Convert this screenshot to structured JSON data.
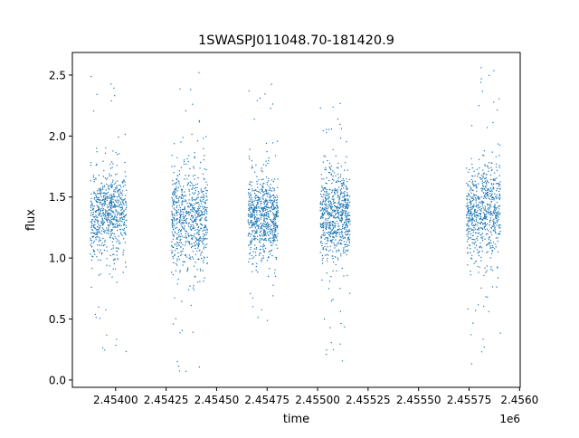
{
  "chart_data": {
    "type": "scatter",
    "title": "1SWASPJ011048.70-181420.9",
    "xlabel": "time",
    "ylabel": "flux",
    "x_offset_label": "1e6",
    "xlim": [
      2453786,
      2456003
    ],
    "ylim": [
      -0.06,
      2.685
    ],
    "xticks": [
      2454000,
      2454250,
      2454500,
      2454750,
      2455000,
      2455250,
      2455500,
      2455750,
      2456000
    ],
    "xtick_labels": [
      "2.45400",
      "2.45425",
      "2.45450",
      "2.45475",
      "2.45500",
      "2.45525",
      "2.45550",
      "2.45575",
      "2.4560"
    ],
    "yticks": [
      0.0,
      0.5,
      1.0,
      1.5,
      2.0,
      2.5
    ],
    "ytick_labels": [
      "0.0",
      "0.5",
      "1.0",
      "1.5",
      "2.0",
      "2.5"
    ],
    "grid": false,
    "marker_color": "#1f77b4",
    "seasons": [
      {
        "time_range": [
          2453875,
          2454055
        ],
        "flux_core": [
          1.0,
          1.7
        ],
        "flux_extremes": [
          0.08,
          2.56
        ],
        "median_flux": 1.35
      },
      {
        "time_range": [
          2454277,
          2454455
        ],
        "flux_core": [
          0.9,
          1.75
        ],
        "flux_extremes": [
          0.07,
          2.56
        ],
        "median_flux": 1.33
      },
      {
        "time_range": [
          2454656,
          2454804
        ],
        "flux_core": [
          1.0,
          1.65
        ],
        "flux_extremes": [
          0.45,
          2.45
        ],
        "median_flux": 1.33
      },
      {
        "time_range": [
          2455013,
          2455161
        ],
        "flux_core": [
          1.0,
          1.75
        ],
        "flux_extremes": [
          0.12,
          2.3
        ],
        "median_flux": 1.35
      },
      {
        "time_range": [
          2455736,
          2455906
        ],
        "flux_core": [
          1.0,
          1.75
        ],
        "flux_extremes": [
          0.13,
          2.56
        ],
        "median_flux": 1.38
      }
    ]
  }
}
